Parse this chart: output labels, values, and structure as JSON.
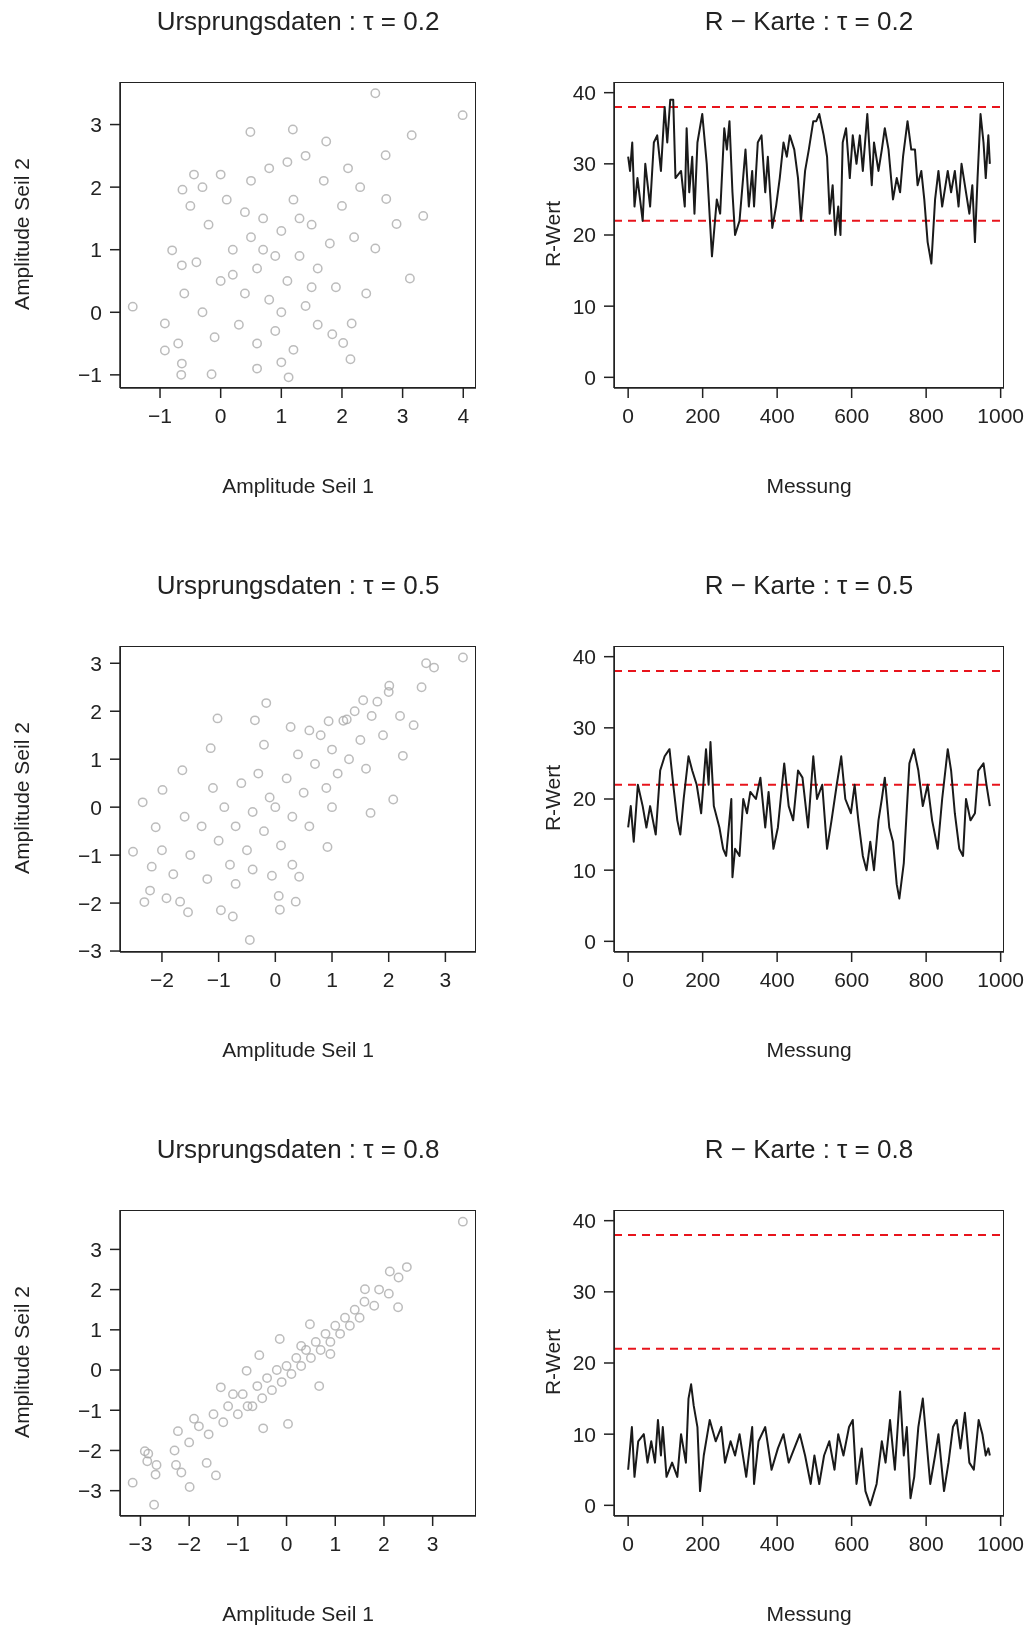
{
  "chart_data": [
    {
      "type": "scatter",
      "title": "Ursprungsdaten : τ = 0.2",
      "xlabel": "Amplitude Seil 1",
      "ylabel": "Amplitude Seil 2",
      "color": "#a6a6a6",
      "marker": "circle",
      "xlim": [
        -1.66,
        4.21
      ],
      "ylim": [
        -1.21,
        3.68
      ],
      "xticks": [
        {
          "value": -1,
          "label": "−1"
        },
        0,
        1,
        2,
        3,
        4
      ],
      "yticks": [
        {
          "value": -1,
          "label": "−1"
        },
        0,
        1,
        2,
        3
      ],
      "x": [
        2.55,
        3.99,
        3.15,
        3.34,
        2.9,
        3.12,
        -1.45,
        -0.92,
        -0.92,
        -0.64,
        -0.65,
        -0.15,
        1.12,
        2.14,
        2.02,
        2.16,
        1.84,
        0.49,
        1.19,
        1.74,
        2.72,
        2.73,
        2.55,
        -0.63,
        -0.44,
        -0.8,
        -0.64,
        0.0,
        0.2,
        0.4,
        0.5,
        0.6,
        0.7,
        0.8,
        0.9,
        1.0,
        1.1,
        1.2,
        1.3,
        1.4,
        1.5,
        1.6,
        1.7,
        1.8,
        1.9,
        2.0,
        2.2,
        2.3,
        -0.3,
        -0.2,
        -0.4,
        -0.5,
        -0.1,
        0.1,
        0.3,
        0.5,
        0.6,
        0.8,
        0.9,
        1.0,
        1.1,
        1.2,
        1.4,
        1.6,
        0.2,
        0.7,
        1.3,
        0.4,
        1.5,
        -0.6,
        -0.7,
        2.4,
        0.0,
        0.6,
        1.0,
        -0.3,
        2.1
      ],
      "values": [
        3.5,
        3.15,
        2.83,
        1.54,
        1.41,
        0.54,
        0.09,
        -0.18,
        -0.61,
        -0.82,
        -1.0,
        -0.99,
        -1.04,
        -0.75,
        -0.49,
        -0.18,
        -0.35,
        2.88,
        2.92,
        2.73,
        2.51,
        1.81,
        1.02,
        1.96,
        2.2,
        0.99,
        0.75,
        0.5,
        1.0,
        0.3,
        1.2,
        0.7,
        1.5,
        0.2,
        0.9,
        1.3,
        0.5,
        1.8,
        0.9,
        0.1,
        1.4,
        0.7,
        2.1,
        1.1,
        0.4,
        1.7,
        1.2,
        2.0,
        0.0,
        1.4,
        0.8,
        1.7,
        -0.4,
        1.8,
        -0.2,
        2.1,
        -0.5,
        2.3,
        -0.3,
        0.0,
        2.4,
        -0.6,
        2.5,
        -0.2,
        0.6,
        1.0,
        1.5,
        1.6,
        0.4,
        0.3,
        -0.5,
        0.3,
        2.2,
        -0.9,
        -0.8,
        2.0,
        2.3
      ]
    },
    {
      "type": "line",
      "title": "R − Karte : τ = 0.2",
      "xlabel": "Messung",
      "ylabel": "R-Wert",
      "color": "#1a1a1a",
      "xlim": [
        -38,
        1009
      ],
      "ylim": [
        -1.5,
        41.5
      ],
      "xticks": [
        0,
        200,
        400,
        600,
        800,
        1000
      ],
      "yticks": [
        0,
        10,
        20,
        30,
        40
      ],
      "ref_lines": [
        {
          "axis": "y",
          "value": 38,
          "color": "#e8141c",
          "line_style": "dashed"
        },
        {
          "axis": "y",
          "value": 22,
          "color": "#e8141c",
          "line_style": "dashed"
        }
      ],
      "x": [
        0,
        5,
        11,
        17,
        25,
        39,
        46,
        59,
        69,
        78,
        88,
        98,
        105,
        113,
        121,
        127,
        142,
        152,
        157,
        164,
        172,
        178,
        186,
        199,
        211,
        225,
        238,
        247,
        258,
        265,
        272,
        280,
        287,
        299,
        315,
        324,
        333,
        338,
        348,
        358,
        368,
        375,
        387,
        397,
        407,
        417,
        426,
        434,
        446,
        456,
        464,
        475,
        485,
        497,
        505,
        513,
        525,
        534,
        541,
        549,
        556,
        564,
        570,
        576,
        585,
        595,
        603,
        613,
        622,
        630,
        642,
        654,
        660,
        672,
        681,
        689,
        699,
        711,
        721,
        730,
        738,
        750,
        760,
        770,
        777,
        787,
        795,
        804,
        814,
        824,
        833,
        843,
        858,
        867,
        877,
        887,
        895,
        907,
        916,
        924,
        931,
        938,
        946,
        954,
        960,
        967,
        971
      ],
      "values": [
        31,
        29,
        33,
        24,
        28,
        22,
        30,
        24,
        33,
        34,
        29,
        38,
        33,
        39,
        39,
        28,
        29,
        24,
        35,
        26,
        31,
        23,
        33,
        37,
        30,
        17,
        25,
        23,
        35,
        32,
        36,
        26,
        20,
        22,
        32,
        24,
        29,
        24,
        33,
        34,
        26,
        31,
        21,
        24,
        28,
        33,
        31,
        34,
        32,
        28,
        22,
        29,
        32,
        36,
        36,
        37,
        34,
        31,
        23,
        27,
        20,
        24,
        20,
        33,
        35,
        28,
        34,
        30,
        34,
        29,
        37,
        27,
        33,
        29,
        32,
        35,
        32,
        25,
        28,
        26,
        31,
        36,
        32,
        32,
        27,
        29,
        25,
        19,
        16,
        25,
        29,
        24,
        29,
        26,
        29,
        24,
        30,
        26,
        23,
        27,
        19,
        28,
        37,
        33,
        28,
        34,
        30
      ]
    },
    {
      "type": "scatter",
      "title": "Ursprungsdaten : τ = 0.5",
      "xlabel": "Amplitude Seil 1",
      "ylabel": "Amplitude Seil 2",
      "color": "#a6a6a6",
      "marker": "circle",
      "xlim": [
        -2.74,
        3.54
      ],
      "ylim": [
        -3.02,
        3.36
      ],
      "xticks": [
        {
          "value": -2,
          "label": "−2"
        },
        {
          "value": -1,
          "label": "−1"
        },
        0,
        1,
        2,
        3
      ],
      "yticks": [
        {
          "value": -3,
          "label": "−3"
        },
        {
          "value": -2,
          "label": "−2"
        },
        {
          "value": -1,
          "label": "−1"
        },
        0,
        1,
        2,
        3
      ],
      "x": [
        3.31,
        2.66,
        2.8,
        2.01,
        2.58,
        2.44,
        2.25,
        2.08,
        1.68,
        -0.16,
        -1.02,
        -1.14,
        -1.64,
        -1.99,
        -2.34,
        -2.51,
        -2.11,
        -2.18,
        -2.31,
        -2.21,
        -1.92,
        -1.68,
        -1.54,
        -0.96,
        -0.75,
        -0.45,
        0.06,
        0.08,
        0.36,
        -0.06,
        0.42,
        0.92,
        0.94,
        0.27,
        -0.36,
        1.55,
        1.26,
        -1.5,
        -1.3,
        -1.2,
        -1.0,
        -0.9,
        -0.8,
        -0.7,
        -0.6,
        -0.5,
        -0.4,
        -0.3,
        -0.2,
        -0.1,
        0.0,
        0.1,
        0.2,
        0.3,
        0.4,
        0.5,
        0.6,
        0.7,
        0.8,
        0.9,
        1.0,
        1.1,
        1.2,
        1.3,
        1.4,
        1.5,
        1.6,
        1.7,
        1.8,
        1.9,
        2.0,
        2.2,
        -1.8,
        -1.6,
        -2.0,
        -1.1,
        -0.2,
        0.3,
        -0.7,
        0.6,
        1.0,
        -0.4
      ],
      "values": [
        3.12,
        3.0,
        2.91,
        2.53,
        2.5,
        1.71,
        1.07,
        0.16,
        -0.12,
        2.17,
        1.85,
        1.23,
        0.77,
        0.36,
        0.1,
        -0.93,
        -0.42,
        -1.24,
        -1.98,
        -1.74,
        -1.9,
        -1.97,
        -2.19,
        -2.15,
        -2.28,
        -2.77,
        -1.85,
        -2.14,
        -1.97,
        -1.43,
        -1.45,
        -0.83,
        1.79,
        1.67,
        1.81,
        2.23,
        1.83,
        -1.0,
        -0.4,
        -1.5,
        -0.7,
        0.0,
        -1.2,
        -0.4,
        0.5,
        -0.9,
        -0.1,
        0.7,
        -0.5,
        0.2,
        0.0,
        -0.8,
        0.6,
        -0.2,
        1.1,
        0.3,
        -0.4,
        0.9,
        1.5,
        0.4,
        1.2,
        0.7,
        1.8,
        1.0,
        2.0,
        1.4,
        0.8,
        1.9,
        2.2,
        1.5,
        2.4,
        1.9,
        -1.4,
        -0.2,
        -0.9,
        0.4,
        1.3,
        -1.2,
        -1.6,
        1.6,
        0.0,
        -1.3
      ]
    },
    {
      "type": "line",
      "title": "R − Karte : τ = 0.5",
      "xlabel": "Messung",
      "ylabel": "R-Wert",
      "color": "#1a1a1a",
      "xlim": [
        -38,
        1009
      ],
      "ylim": [
        -1.5,
        41.5
      ],
      "xticks": [
        0,
        200,
        400,
        600,
        800,
        1000
      ],
      "yticks": [
        0,
        10,
        20,
        30,
        40
      ],
      "ref_lines": [
        {
          "axis": "y",
          "value": 38,
          "color": "#e8141c",
          "line_style": "dashed"
        },
        {
          "axis": "y",
          "value": 22,
          "color": "#e8141c",
          "line_style": "dashed"
        }
      ],
      "x": [
        0,
        7,
        15,
        26,
        39,
        49,
        59,
        74,
        86,
        98,
        111,
        121,
        132,
        140,
        149,
        162,
        172,
        184,
        196,
        209,
        216,
        221,
        230,
        245,
        255,
        263,
        270,
        277,
        280,
        287,
        299,
        309,
        319,
        328,
        343,
        355,
        368,
        377,
        390,
        402,
        419,
        431,
        443,
        456,
        468,
        483,
        497,
        507,
        521,
        534,
        546,
        560,
        572,
        583,
        598,
        608,
        618,
        630,
        640,
        650,
        660,
        672,
        681,
        689,
        701,
        711,
        721,
        728,
        740,
        755,
        767,
        779,
        791,
        804,
        816,
        831,
        843,
        858,
        867,
        877,
        889,
        899,
        907,
        919,
        931,
        940,
        954,
        962,
        971
      ],
      "values": [
        16,
        19,
        14,
        22,
        19,
        16,
        19,
        15,
        24,
        26,
        27,
        22,
        17,
        15,
        20,
        26,
        24,
        22,
        18,
        27,
        22,
        28,
        19,
        16,
        13,
        12,
        16,
        20,
        9,
        13,
        12,
        20,
        18,
        21,
        20,
        23,
        16,
        21,
        13,
        16,
        25,
        19,
        17,
        24,
        23,
        16,
        26,
        20,
        22,
        13,
        17,
        22,
        26,
        20,
        18,
        22,
        17,
        12,
        10,
        14,
        10,
        17,
        20,
        23,
        16,
        14,
        8,
        6,
        11,
        25,
        27,
        24,
        19,
        22,
        17,
        13,
        20,
        27,
        24,
        18,
        13,
        12,
        20,
        17,
        18,
        24,
        25,
        22,
        19
      ]
    },
    {
      "type": "scatter",
      "title": "Ursprungsdaten : τ = 0.8",
      "xlabel": "Amplitude Seil 1",
      "ylabel": "Amplitude Seil 2",
      "color": "#a6a6a6",
      "marker": "circle",
      "xlim": [
        -3.42,
        3.89
      ],
      "ylim": [
        -3.63,
        3.98
      ],
      "xticks": [
        {
          "value": -3,
          "label": "−3"
        },
        {
          "value": -2,
          "label": "−2"
        },
        {
          "value": -1,
          "label": "−1"
        },
        0,
        1,
        2,
        3
      ],
      "yticks": [
        {
          "value": -3,
          "label": "−3"
        },
        {
          "value": -2,
          "label": "−2"
        },
        {
          "value": -1,
          "label": "−1"
        },
        0,
        1,
        2,
        3
      ],
      "x": [
        3.62,
        2.47,
        2.12,
        2.29,
        1.61,
        0.67,
        0.03,
        -0.48,
        -0.56,
        -0.14,
        -2.23,
        -3.16,
        -2.91,
        -2.84,
        -2.86,
        -2.67,
        -2.69,
        -2.72,
        -1.99,
        -2.27,
        -2.16,
        -1.45,
        -1.64,
        -1.9,
        -1.35,
        0.48,
        -0.82,
        -2.0,
        -1.8,
        -1.6,
        -1.5,
        -1.3,
        -1.2,
        -1.0,
        -0.9,
        -0.8,
        -0.6,
        -0.5,
        -0.4,
        -0.3,
        -0.2,
        -0.1,
        0.0,
        0.1,
        0.2,
        0.3,
        0.4,
        0.5,
        0.6,
        0.7,
        0.8,
        0.9,
        1.0,
        1.1,
        1.2,
        1.3,
        1.4,
        1.5,
        1.6,
        1.8,
        1.9,
        2.1,
        2.3,
        -1.1,
        -0.7,
        0.3,
        0.9,
        -2.3
      ],
      "values": [
        3.69,
        2.56,
        2.45,
        1.56,
        2.01,
        -0.4,
        -1.34,
        -1.45,
        0.37,
        0.77,
        -1.52,
        -2.8,
        -2.02,
        -2.08,
        -2.27,
        -2.36,
        -2.6,
        -3.35,
        -2.91,
        -2.36,
        -2.55,
        -2.62,
        -2.31,
        -1.21,
        -0.43,
        1.14,
        -0.02,
        -1.8,
        -1.4,
        -1.6,
        -1.1,
        -1.3,
        -0.9,
        -1.1,
        -0.6,
        -0.9,
        -0.4,
        -0.7,
        -0.2,
        -0.5,
        0.0,
        -0.3,
        0.1,
        -0.1,
        0.3,
        0.1,
        0.5,
        0.3,
        0.7,
        0.5,
        0.9,
        0.7,
        1.1,
        0.9,
        1.3,
        1.1,
        1.5,
        1.3,
        1.7,
        1.6,
        2.0,
        1.9,
        2.3,
        -0.6,
        -0.9,
        0.6,
        0.4,
        -2.0
      ]
    },
    {
      "type": "line",
      "title": "R − Karte : τ = 0.8",
      "xlabel": "Messung",
      "ylabel": "R-Wert",
      "color": "#1a1a1a",
      "xlim": [
        -38,
        1009
      ],
      "ylim": [
        -1.5,
        41.5
      ],
      "xticks": [
        0,
        200,
        400,
        600,
        800,
        1000
      ],
      "yticks": [
        0,
        10,
        20,
        30,
        40
      ],
      "ref_lines": [
        {
          "axis": "y",
          "value": 38,
          "color": "#e8141c",
          "line_style": "dashed"
        },
        {
          "axis": "y",
          "value": 22,
          "color": "#e8141c",
          "line_style": "dashed"
        }
      ],
      "x": [
        0,
        10,
        17,
        27,
        42,
        52,
        62,
        72,
        80,
        88,
        93,
        103,
        118,
        132,
        142,
        155,
        162,
        169,
        176,
        186,
        193,
        203,
        219,
        235,
        250,
        260,
        275,
        287,
        299,
        317,
        333,
        338,
        350,
        368,
        385,
        402,
        417,
        431,
        446,
        461,
        475,
        490,
        500,
        513,
        526,
        540,
        554,
        564,
        578,
        593,
        603,
        613,
        627,
        637,
        650,
        667,
        681,
        691,
        703,
        716,
        730,
        740,
        748,
        758,
        768,
        779,
        791,
        801,
        811,
        824,
        833,
        848,
        860,
        872,
        882,
        892,
        904,
        916,
        928,
        941,
        951,
        960,
        967,
        971
      ],
      "values": [
        5,
        11,
        4,
        9,
        10,
        6,
        9,
        6,
        12,
        7,
        11,
        4,
        6,
        4,
        10,
        6,
        15,
        17,
        14,
        11,
        2,
        7,
        12,
        9,
        11,
        6,
        9,
        7,
        10,
        4,
        11,
        3,
        9,
        11,
        5,
        8,
        10,
        6,
        8,
        10,
        7,
        3,
        7,
        3,
        7,
        9,
        5,
        10,
        7,
        11,
        12,
        3,
        8,
        2,
        0,
        3,
        9,
        6,
        12,
        5,
        16,
        7,
        11,
        1,
        4,
        11,
        15,
        9,
        3,
        7,
        10,
        2,
        6,
        11,
        12,
        8,
        13,
        6,
        5,
        12,
        10,
        7,
        8,
        7
      ]
    }
  ]
}
